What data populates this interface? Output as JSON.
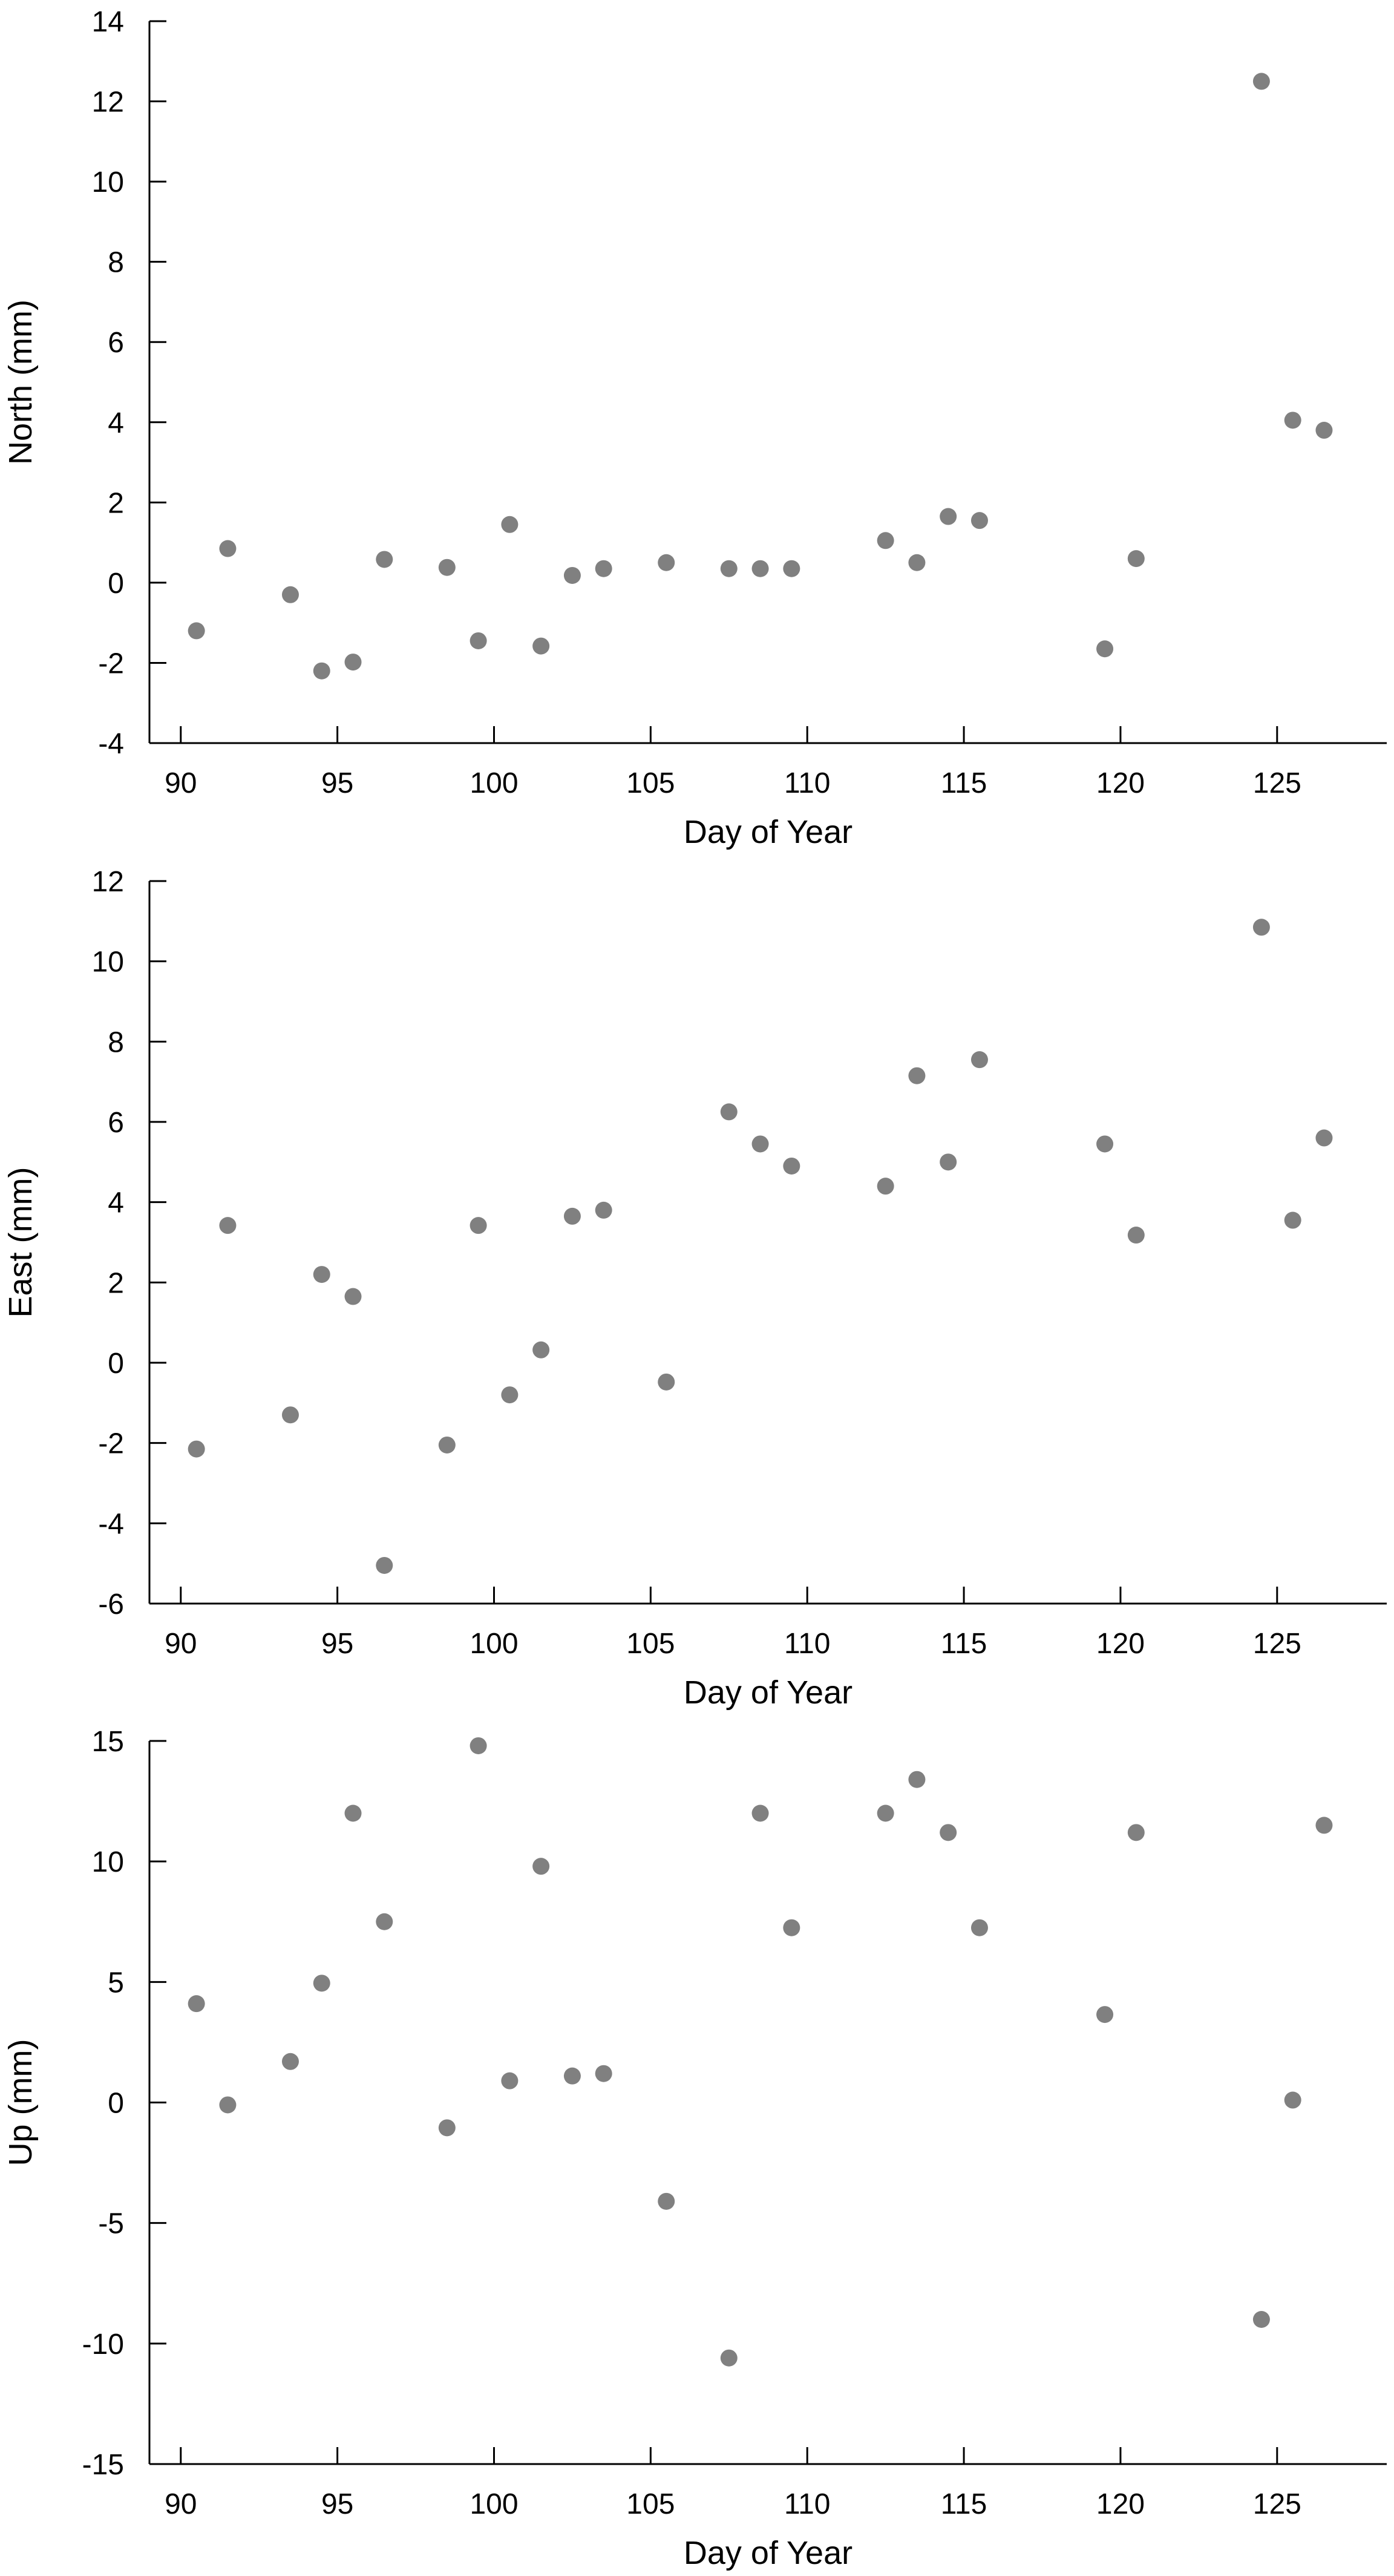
{
  "chart_data": [
    {
      "type": "scatter",
      "xlabel": "Day of Year",
      "ylabel": "North (mm)",
      "xlim": [
        89,
        128.5
      ],
      "ylim": [
        -4,
        14
      ],
      "xticks": [
        90,
        95,
        100,
        105,
        110,
        115,
        120,
        125
      ],
      "yticks": [
        -4,
        -2,
        0,
        2,
        4,
        6,
        8,
        10,
        12,
        14
      ],
      "grid": false,
      "marker_color": "#808080",
      "series": [
        {
          "x": [
            90.5,
            91.5,
            93.5,
            94.5,
            95.5,
            96.5,
            98.5,
            99.5,
            100.5,
            101.5,
            102.5,
            103.5,
            105.5,
            107.5,
            108.5,
            109.5,
            112.5,
            113.5,
            114.5,
            115.5,
            119.5,
            120.5,
            124.5,
            125.5,
            126.5
          ],
          "y": [
            -1.2,
            0.85,
            -0.3,
            -2.2,
            -1.98,
            0.58,
            0.38,
            -1.45,
            1.45,
            -1.58,
            0.18,
            0.35,
            0.5,
            0.35,
            0.35,
            0.35,
            1.05,
            0.5,
            1.65,
            1.55,
            -1.65,
            0.6,
            12.5,
            4.05,
            3.8
          ]
        }
      ]
    },
    {
      "type": "scatter",
      "xlabel": "Day of Year",
      "ylabel": "East (mm)",
      "xlim": [
        89,
        128.5
      ],
      "ylim": [
        -6,
        12
      ],
      "xticks": [
        90,
        95,
        100,
        105,
        110,
        115,
        120,
        125
      ],
      "yticks": [
        -6,
        -4,
        -2,
        0,
        2,
        4,
        6,
        8,
        10,
        12
      ],
      "grid": false,
      "marker_color": "#808080",
      "series": [
        {
          "x": [
            90.5,
            91.5,
            93.5,
            94.5,
            95.5,
            96.5,
            98.5,
            99.5,
            100.5,
            101.5,
            102.5,
            103.5,
            105.5,
            107.5,
            108.5,
            109.5,
            112.5,
            113.5,
            114.5,
            115.5,
            119.5,
            120.5,
            124.5,
            125.5,
            126.5
          ],
          "y": [
            -2.15,
            3.42,
            -1.3,
            2.2,
            1.65,
            -5.05,
            -2.05,
            3.42,
            -0.8,
            0.32,
            3.65,
            3.8,
            -0.48,
            6.25,
            5.45,
            4.9,
            4.4,
            7.15,
            5.0,
            7.55,
            5.45,
            3.18,
            10.85,
            3.55,
            5.6
          ]
        }
      ]
    },
    {
      "type": "scatter",
      "xlabel": "Day of Year",
      "ylabel": "Up (mm)",
      "xlim": [
        89,
        128.5
      ],
      "ylim": [
        -15,
        15
      ],
      "xticks": [
        90,
        95,
        100,
        105,
        110,
        115,
        120,
        125
      ],
      "yticks": [
        -15,
        -10,
        -5,
        0,
        5,
        10,
        15
      ],
      "grid": false,
      "marker_color": "#808080",
      "series": [
        {
          "x": [
            90.5,
            91.5,
            93.5,
            94.5,
            95.5,
            96.5,
            98.5,
            99.5,
            100.5,
            101.5,
            102.5,
            103.5,
            105.5,
            107.5,
            108.5,
            109.5,
            112.5,
            113.5,
            114.5,
            115.5,
            119.5,
            120.5,
            124.5,
            125.5,
            126.5
          ],
          "y": [
            4.1,
            -0.1,
            1.7,
            4.95,
            12.0,
            7.5,
            -1.05,
            14.8,
            0.9,
            9.8,
            1.1,
            1.2,
            -4.1,
            -10.6,
            12.0,
            7.25,
            12.0,
            13.4,
            11.2,
            7.25,
            3.65,
            11.2,
            -9.0,
            0.1,
            11.5
          ]
        }
      ]
    }
  ]
}
